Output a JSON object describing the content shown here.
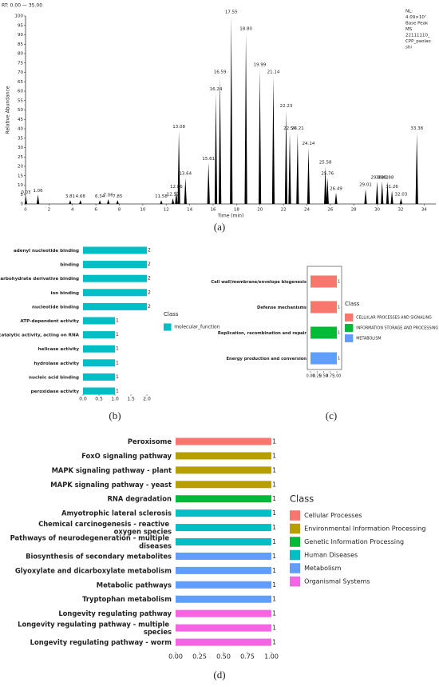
{
  "chart_data": [
    {
      "type": "chromatogram",
      "header": "RT: 0.00 — 35.00",
      "annotation_lines": [
        "NL:",
        "4.09×10⁷",
        "Base Peak",
        "MS",
        "22111110_",
        "CPP_paolao",
        "shi"
      ],
      "xlabel": "Time (min)",
      "ylabel": "Relative Abundance",
      "panel_label": "(a)",
      "color": "#000000",
      "x": [
        0.03,
        1.06,
        3.81,
        4.68,
        6.34,
        7.06,
        7.85,
        11.58,
        12.57,
        12.86,
        13.08,
        13.64,
        15.61,
        16.24,
        16.59,
        17.55,
        18.8,
        19.99,
        21.14,
        22.23,
        22.54,
        23.21,
        24.14,
        25.58,
        25.76,
        26.49,
        29.01,
        29.99,
        30.42,
        30.88,
        31.26,
        32.03,
        33.38
      ],
      "x_labels": [
        "0.03",
        "1.06",
        "3.81",
        "4.68",
        "6.34",
        "7.06",
        "7.85",
        "11.58",
        "12.57",
        "12.86",
        "13.08",
        "13.64",
        "15.61",
        "16.24",
        "16.59",
        "17.55",
        "18.80",
        "19.99",
        "21.14",
        "22.23",
        "22.54",
        "23.21",
        "24.14",
        "25.58",
        "25.76",
        "26.49",
        "29.01",
        "29.99",
        "30.42",
        "30.88",
        "31.26",
        "32.03",
        "33.38"
      ],
      "values": [
        4,
        5,
        2,
        2,
        2,
        2.5,
        2,
        2,
        3,
        7,
        39,
        14,
        22,
        59,
        68,
        100,
        91,
        72,
        68,
        50,
        38,
        38,
        30,
        20,
        14,
        6,
        8,
        12,
        12,
        12,
        7,
        3,
        38
      ],
      "xlim": [
        0,
        35
      ],
      "ylim": [
        0,
        100
      ],
      "xticks": [
        0,
        2,
        4,
        6,
        8,
        10,
        12,
        14,
        16,
        18,
        20,
        22,
        24,
        26,
        28,
        30,
        32,
        34
      ],
      "yticks": [
        0,
        5,
        10,
        15,
        20,
        25,
        30,
        35,
        40,
        45,
        50,
        55,
        60,
        65,
        70,
        75,
        80,
        85,
        90,
        95,
        100
      ]
    },
    {
      "type": "hbar",
      "panel_label": "(b)",
      "categories": [
        "adenyl nucleotide binding",
        "binding",
        "carbohydrate derivative binding",
        "ion binding",
        "nucleotide binding",
        "ATP-dependent activity",
        "catalytic activity, acting on RNA",
        "helicase activity",
        "hydrolase activity",
        "nucleic acid binding",
        "peroxidase activity"
      ],
      "values": [
        2,
        2,
        2,
        2,
        2,
        1,
        1,
        1,
        1,
        1,
        1
      ],
      "colors": [
        "#00bfc4",
        "#00bfc4",
        "#00bfc4",
        "#00bfc4",
        "#00bfc4",
        "#00bfc4",
        "#00bfc4",
        "#00bfc4",
        "#00bfc4",
        "#00bfc4",
        "#00bfc4"
      ],
      "xlim": [
        0,
        2
      ],
      "xticks": [
        {
          "value": 0,
          "label": "0.0"
        },
        {
          "value": 0.5,
          "label": "0.5"
        },
        {
          "value": 1,
          "label": "1.0"
        },
        {
          "value": 1.5,
          "label": "1.5"
        },
        {
          "value": 2,
          "label": "2.0"
        }
      ],
      "legend": {
        "title": "Class",
        "entries": [
          {
            "name": "molecular_function",
            "color": "#00bfc4"
          }
        ]
      }
    },
    {
      "type": "hbar",
      "panel_label": "(c)",
      "categories": [
        "Cell wall/membrane/envelope biogenesis",
        "Defense mechanisms",
        "Replication, recombination and repair",
        "Energy production and conversion"
      ],
      "values": [
        1,
        1,
        1,
        1
      ],
      "colors": [
        "#f8766d",
        "#f8766d",
        "#00ba38",
        "#619cff"
      ],
      "xlim": [
        0,
        1
      ],
      "xticks": [
        {
          "value": 0,
          "label": "0.00"
        },
        {
          "value": 0.25,
          "label": "0.25"
        },
        {
          "value": 0.5,
          "label": "0.50"
        },
        {
          "value": 0.75,
          "label": "0.75"
        },
        {
          "value": 1,
          "label": "1.00"
        }
      ],
      "legend": {
        "title": "Class",
        "entries": [
          {
            "name": "CELLULAR PROCESSES AND SIGNALING",
            "color": "#f8766d"
          },
          {
            "name": "INFORMATION STORAGE AND PROCESSING",
            "color": "#00ba38"
          },
          {
            "name": "METABOLISM",
            "color": "#619cff"
          }
        ]
      }
    },
    {
      "type": "hbar",
      "panel_label": "(d)",
      "categories": [
        "Peroxisome",
        "FoxO signaling pathway",
        "MAPK signaling pathway - plant",
        "MAPK signaling pathway - yeast",
        "RNA degradation",
        "Amyotrophic lateral sclerosis",
        "Chemical carcinogenesis - reactive oxygen species",
        "Pathways of neurodegeneration - multiple diseases",
        "Biosynthesis of secondary metabolites",
        "Glyoxylate and dicarboxylate metabolism",
        "Metabolic pathways",
        "Tryptophan metabolism",
        "Longevity regulating pathway",
        "Longevity regulating pathway - multiple species",
        "Longevity regulating pathway - worm"
      ],
      "values": [
        1,
        1,
        1,
        1,
        1,
        1,
        1,
        1,
        1,
        1,
        1,
        1,
        1,
        1,
        1
      ],
      "colors": [
        "#f8766d",
        "#b79f00",
        "#b79f00",
        "#b79f00",
        "#00ba38",
        "#00bfc4",
        "#00bfc4",
        "#00bfc4",
        "#619cff",
        "#619cff",
        "#619cff",
        "#619cff",
        "#f564e3",
        "#f564e3",
        "#f564e3"
      ],
      "xlim": [
        0,
        1
      ],
      "xticks": [
        {
          "value": 0,
          "label": "0.00"
        },
        {
          "value": 0.25,
          "label": "0.25"
        },
        {
          "value": 0.5,
          "label": "0.50"
        },
        {
          "value": 0.75,
          "label": "0.75"
        },
        {
          "value": 1,
          "label": "1.00"
        }
      ],
      "legend": {
        "title": "Class",
        "entries": [
          {
            "name": "Cellular Processes",
            "color": "#f8766d"
          },
          {
            "name": "Environmental Information Processing",
            "color": "#b79f00"
          },
          {
            "name": "Genetic Information Processing",
            "color": "#00ba38"
          },
          {
            "name": "Human Diseases",
            "color": "#00bfc4"
          },
          {
            "name": "Metabolism",
            "color": "#619cff"
          },
          {
            "name": "Organismal Systems",
            "color": "#f564e3"
          }
        ]
      }
    }
  ]
}
